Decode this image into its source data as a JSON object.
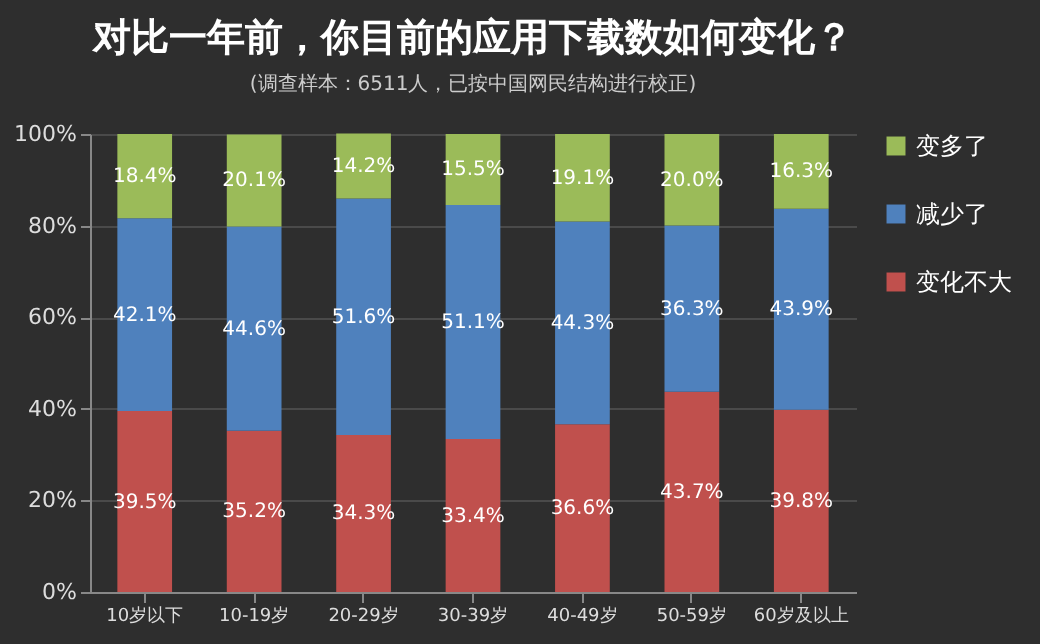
{
  "chart_data": {
    "type": "bar",
    "stacked": true,
    "title": "对比一年前，你目前的应用下载数如何变化？",
    "subtitle": "(调查样本：6511人，已按中国网民结构进行校正)",
    "categories": [
      "10岁以下",
      "10-19岁",
      "20-29岁",
      "30-39岁",
      "40-49岁",
      "50-59岁",
      "60岁及以上"
    ],
    "series": [
      {
        "name": "变化不大",
        "color": "#c0504d",
        "values": [
          39.5,
          35.2,
          34.3,
          33.4,
          36.6,
          43.7,
          39.8
        ],
        "value_labels": [
          "39.5%",
          "35.2%",
          "34.3%",
          "33.4%",
          "36.6%",
          "43.7%",
          "39.8%"
        ]
      },
      {
        "name": "减少了",
        "color": "#4f81bd",
        "values": [
          42.1,
          44.6,
          51.6,
          51.1,
          44.3,
          36.3,
          43.9
        ],
        "value_labels": [
          "42.1%",
          "44.6%",
          "51.6%",
          "51.1%",
          "44.3%",
          "36.3%",
          "43.9%"
        ]
      },
      {
        "name": "变多了",
        "color": "#9bbb59",
        "values": [
          18.4,
          20.1,
          14.2,
          15.5,
          19.1,
          20.0,
          16.3
        ],
        "value_labels": [
          "18.4%",
          "20.1%",
          "14.2%",
          "15.5%",
          "19.1%",
          "20.0%",
          "16.3%"
        ]
      }
    ],
    "ylim": [
      0,
      100
    ],
    "yticks": [
      {
        "value": 0,
        "label": "0%"
      },
      {
        "value": 20,
        "label": "20%"
      },
      {
        "value": 40,
        "label": "40%"
      },
      {
        "value": 60,
        "label": "60%"
      },
      {
        "value": 80,
        "label": "80%"
      },
      {
        "value": 100,
        "label": "100%"
      }
    ],
    "grid": "y",
    "legend": "right"
  }
}
